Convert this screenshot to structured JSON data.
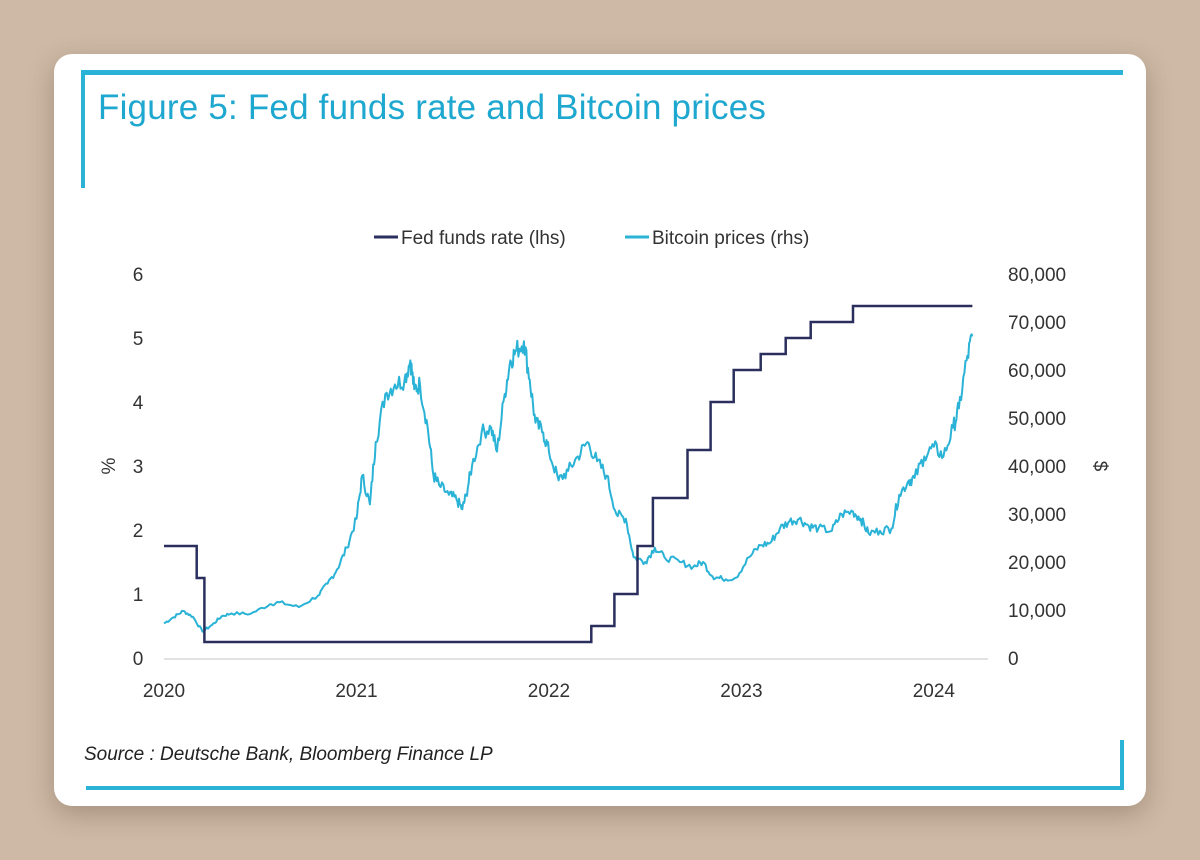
{
  "figure": {
    "title": "Figure 5: Fed funds rate and Bitcoin prices",
    "source": "Source : Deutsche Bank, Bloomberg Finance LP"
  },
  "colors": {
    "fed": "#2b2f5e",
    "btc": "#2ab3d6",
    "frame": "#2ab3d6",
    "background": "#cdb9a5"
  },
  "chart_data": {
    "type": "line",
    "title": "Figure 5: Fed funds rate and Bitcoin prices",
    "xlabel": "",
    "ylabel_left": "%",
    "ylabel_right": "$",
    "legend_position": "top-center",
    "x_ticks": [
      "2020",
      "2021",
      "2022",
      "2023",
      "2024"
    ],
    "y_left_ticks": [
      "0",
      "1",
      "2",
      "3",
      "4",
      "5",
      "6"
    ],
    "y_right_ticks": [
      "0",
      "10,000",
      "20,000",
      "30,000",
      "40,000",
      "50,000",
      "60,000",
      "70,000",
      "80,000"
    ],
    "xlim": [
      2020.0,
      2024.25
    ],
    "ylim_left": [
      0,
      6
    ],
    "ylim_right": [
      0,
      80000
    ],
    "series": [
      {
        "name": "Fed funds rate (lhs)",
        "axis": "left",
        "step": true,
        "points": [
          [
            2020.0,
            1.75
          ],
          [
            2020.17,
            1.25
          ],
          [
            2020.21,
            0.25
          ],
          [
            2022.22,
            0.5
          ],
          [
            2022.34,
            1.0
          ],
          [
            2022.46,
            1.75
          ],
          [
            2022.54,
            2.5
          ],
          [
            2022.72,
            3.25
          ],
          [
            2022.84,
            4.0
          ],
          [
            2022.96,
            4.5
          ],
          [
            2023.1,
            4.75
          ],
          [
            2023.23,
            5.0
          ],
          [
            2023.36,
            5.25
          ],
          [
            2023.58,
            5.5
          ],
          [
            2024.2,
            5.5
          ]
        ]
      },
      {
        "name": "Bitcoin prices (rhs)",
        "axis": "right",
        "step": false,
        "points": [
          [
            2020.0,
            7200
          ],
          [
            2020.05,
            8500
          ],
          [
            2020.1,
            9800
          ],
          [
            2020.15,
            8600
          ],
          [
            2020.2,
            5500
          ],
          [
            2020.25,
            6900
          ],
          [
            2020.3,
            8700
          ],
          [
            2020.35,
            9300
          ],
          [
            2020.45,
            9200
          ],
          [
            2020.55,
            11200
          ],
          [
            2020.6,
            11600
          ],
          [
            2020.7,
            10600
          ],
          [
            2020.8,
            13000
          ],
          [
            2020.85,
            15500
          ],
          [
            2020.9,
            18500
          ],
          [
            2020.95,
            23000
          ],
          [
            2021.0,
            29000
          ],
          [
            2021.03,
            38000
          ],
          [
            2021.07,
            32000
          ],
          [
            2021.1,
            45000
          ],
          [
            2021.15,
            55000
          ],
          [
            2021.2,
            57000
          ],
          [
            2021.25,
            58000
          ],
          [
            2021.28,
            62000
          ],
          [
            2021.3,
            56000
          ],
          [
            2021.33,
            57000
          ],
          [
            2021.37,
            48000
          ],
          [
            2021.4,
            38000
          ],
          [
            2021.43,
            36000
          ],
          [
            2021.48,
            34000
          ],
          [
            2021.52,
            33000
          ],
          [
            2021.55,
            31000
          ],
          [
            2021.57,
            34000
          ],
          [
            2021.6,
            40000
          ],
          [
            2021.65,
            47000
          ],
          [
            2021.7,
            48000
          ],
          [
            2021.73,
            43000
          ],
          [
            2021.77,
            55000
          ],
          [
            2021.8,
            62000
          ],
          [
            2021.83,
            64000
          ],
          [
            2021.87,
            66000
          ],
          [
            2021.9,
            58000
          ],
          [
            2021.93,
            49000
          ],
          [
            2021.97,
            47000
          ],
          [
            2022.0,
            43000
          ],
          [
            2022.05,
            37000
          ],
          [
            2022.1,
            39000
          ],
          [
            2022.15,
            42000
          ],
          [
            2022.2,
            45000
          ],
          [
            2022.25,
            41000
          ],
          [
            2022.3,
            38000
          ],
          [
            2022.35,
            30000
          ],
          [
            2022.4,
            29000
          ],
          [
            2022.44,
            21000
          ],
          [
            2022.5,
            20000
          ],
          [
            2022.55,
            23000
          ],
          [
            2022.6,
            21000
          ],
          [
            2022.68,
            20000
          ],
          [
            2022.75,
            19000
          ],
          [
            2022.8,
            20000
          ],
          [
            2022.85,
            17000
          ],
          [
            2022.9,
            16500
          ],
          [
            2022.97,
            16700
          ],
          [
            2023.04,
            21000
          ],
          [
            2023.1,
            23500
          ],
          [
            2023.15,
            24000
          ],
          [
            2023.2,
            27000
          ],
          [
            2023.25,
            28500
          ],
          [
            2023.3,
            29000
          ],
          [
            2023.35,
            27500
          ],
          [
            2023.4,
            27000
          ],
          [
            2023.47,
            26500
          ],
          [
            2023.52,
            30000
          ],
          [
            2023.58,
            30500
          ],
          [
            2023.62,
            29000
          ],
          [
            2023.66,
            26000
          ],
          [
            2023.72,
            26500
          ],
          [
            2023.78,
            27000
          ],
          [
            2023.82,
            34000
          ],
          [
            2023.87,
            37000
          ],
          [
            2023.9,
            37500
          ],
          [
            2023.95,
            42000
          ],
          [
            2024.0,
            44000
          ],
          [
            2024.05,
            42000
          ],
          [
            2024.1,
            48000
          ],
          [
            2024.13,
            52000
          ],
          [
            2024.17,
            62000
          ],
          [
            2024.2,
            67000
          ]
        ]
      }
    ]
  }
}
